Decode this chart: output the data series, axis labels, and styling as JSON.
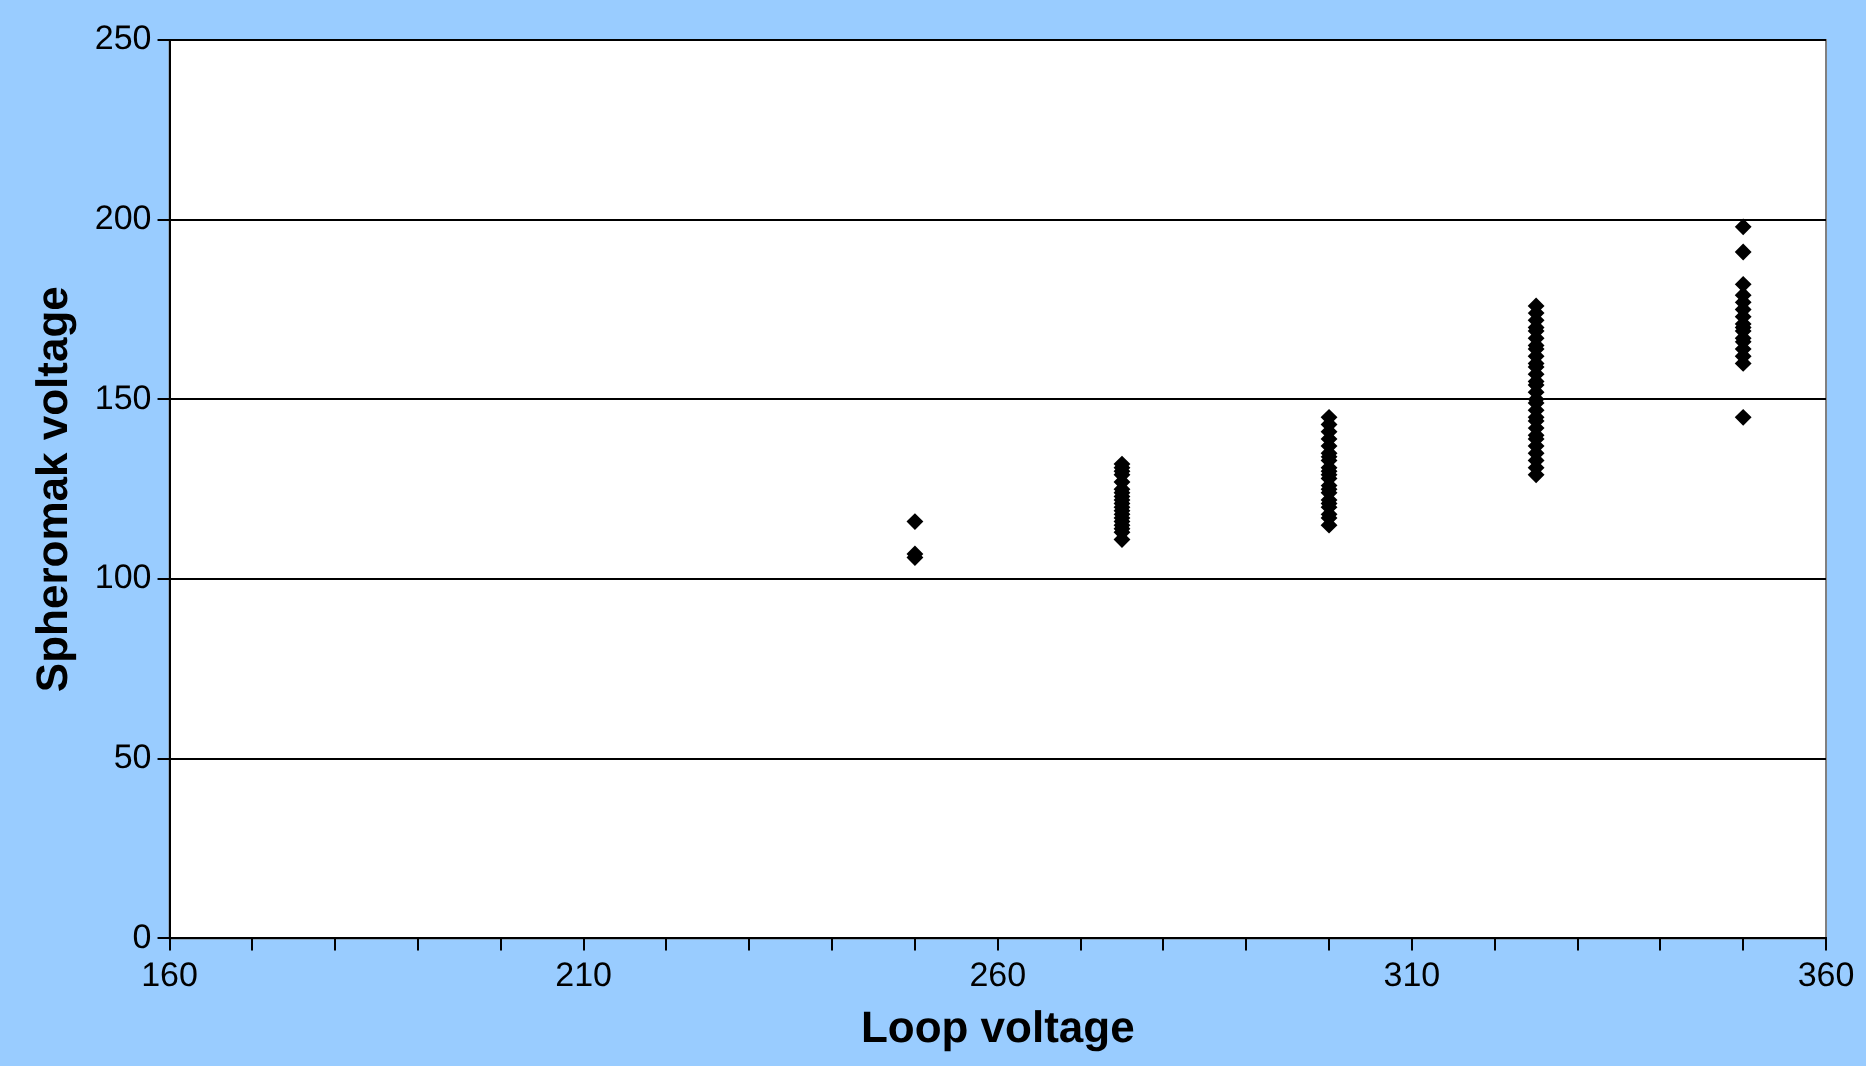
{
  "chart_data": {
    "type": "scatter",
    "xlabel": "Loop voltage",
    "ylabel": "Spheromak voltage",
    "marker": "diamond",
    "grid": "y",
    "legend": false,
    "xlim": [
      160,
      360
    ],
    "ylim": [
      0,
      250
    ],
    "xticks": [
      160,
      {
        "value": 170,
        "label": null
      },
      {
        "value": 180,
        "label": null
      },
      {
        "value": 190,
        "label": null
      },
      {
        "value": 200,
        "label": null
      },
      210,
      {
        "value": 220,
        "label": null
      },
      {
        "value": 230,
        "label": null
      },
      {
        "value": 240,
        "label": null
      },
      {
        "value": 250,
        "label": null
      },
      260,
      {
        "value": 270,
        "label": null
      },
      {
        "value": 280,
        "label": null
      },
      {
        "value": 290,
        "label": null
      },
      {
        "value": 300,
        "label": null
      },
      310,
      {
        "value": 320,
        "label": null
      },
      {
        "value": 330,
        "label": null
      },
      {
        "value": 340,
        "label": null
      },
      {
        "value": 350,
        "label": null
      },
      360
    ],
    "yticks": [
      0,
      50,
      100,
      150,
      200,
      250
    ],
    "series": [
      {
        "color": "#000000",
        "x": [
          250,
          250,
          250,
          275,
          275,
          275,
          275,
          275,
          275,
          275,
          275,
          275,
          275,
          275,
          275,
          275,
          275,
          275,
          275,
          275,
          275,
          275,
          300,
          300,
          300,
          300,
          300,
          300,
          300,
          300,
          300,
          300,
          300,
          300,
          300,
          300,
          300,
          300,
          300,
          300,
          300,
          300,
          300,
          325,
          325,
          325,
          325,
          325,
          325,
          325,
          325,
          325,
          325,
          325,
          325,
          325,
          325,
          325,
          325,
          325,
          325,
          325,
          325,
          325,
          325,
          325,
          325,
          325,
          325,
          325,
          325,
          350,
          350,
          350,
          350,
          350,
          350,
          350,
          350,
          350,
          350,
          350,
          350,
          350,
          350,
          350,
          350
        ],
        "values": [
          116,
          107,
          106,
          111,
          113,
          114,
          115,
          116,
          117,
          118,
          119,
          120,
          121,
          122,
          123,
          124,
          125,
          127,
          129,
          130,
          131,
          132,
          115,
          117,
          118,
          120,
          121,
          122,
          124,
          125,
          126,
          128,
          129,
          130,
          131,
          133,
          134,
          135,
          137,
          139,
          141,
          143,
          145,
          129,
          131,
          133,
          135,
          137,
          139,
          140,
          142,
          144,
          145,
          147,
          149,
          150,
          152,
          154,
          155,
          157,
          159,
          160,
          162,
          164,
          165,
          167,
          169,
          170,
          172,
          174,
          176,
          145,
          160,
          162,
          164,
          166,
          167,
          169,
          170,
          171,
          173,
          175,
          177,
          179,
          182,
          191,
          198
        ]
      }
    ]
  }
}
